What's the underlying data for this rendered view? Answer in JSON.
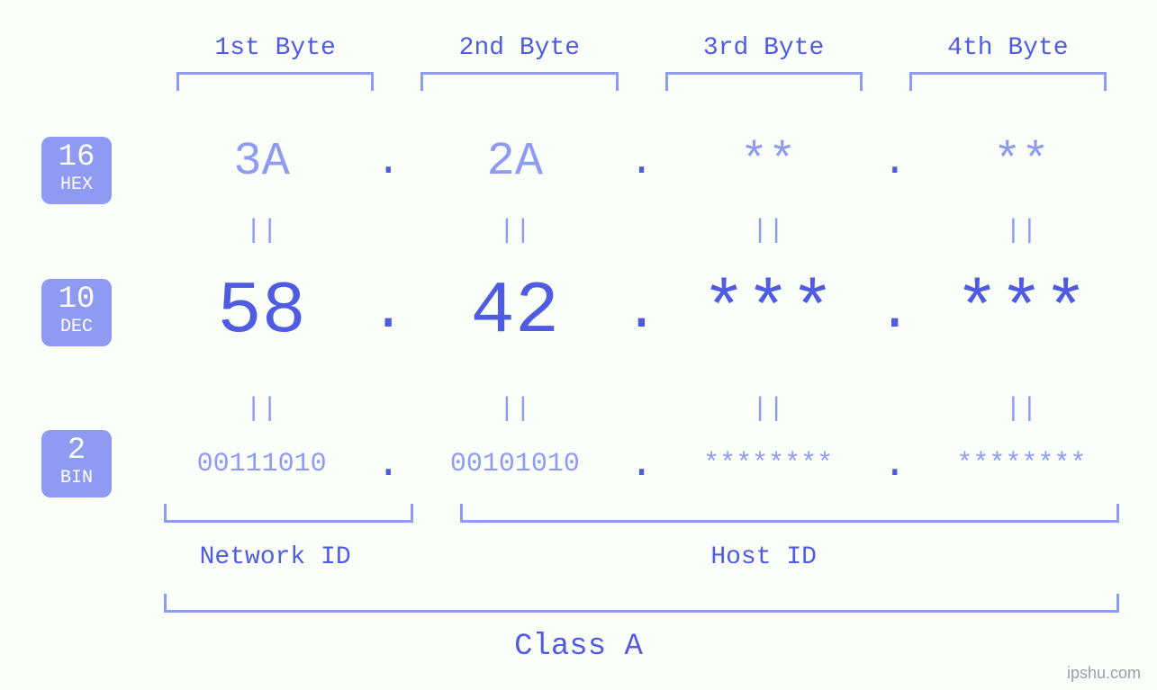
{
  "colors": {
    "blue": "#4f5be0",
    "light": "#8f9bf2",
    "bg": "#fafffa"
  },
  "byte_headers": [
    "1st Byte",
    "2nd Byte",
    "3rd Byte",
    "4th Byte"
  ],
  "bases": {
    "hex": {
      "num": "16",
      "label": "HEX",
      "values": [
        "3A",
        "2A",
        "**",
        "**"
      ]
    },
    "dec": {
      "num": "10",
      "label": "DEC",
      "values": [
        "58",
        "42",
        "***",
        "***"
      ]
    },
    "bin": {
      "num": "2",
      "label": "BIN",
      "values": [
        "00111010",
        "00101010",
        "********",
        "********"
      ]
    }
  },
  "separator": ".",
  "equals": "||",
  "ids": {
    "network": "Network ID",
    "host": "Host ID"
  },
  "class_label": "Class A",
  "watermark": "ipshu.com",
  "style": {
    "font": "monospace",
    "hex_fontsize": 52,
    "dec_fontsize": 82,
    "bin_fontsize": 30,
    "header_fontsize": 28,
    "id_fontsize": 28,
    "class_fontsize": 34,
    "badge_num_fontsize": 34,
    "badge_txt_fontsize": 20,
    "bracket_color": "#8f9bf2",
    "bracket_width": 3
  }
}
